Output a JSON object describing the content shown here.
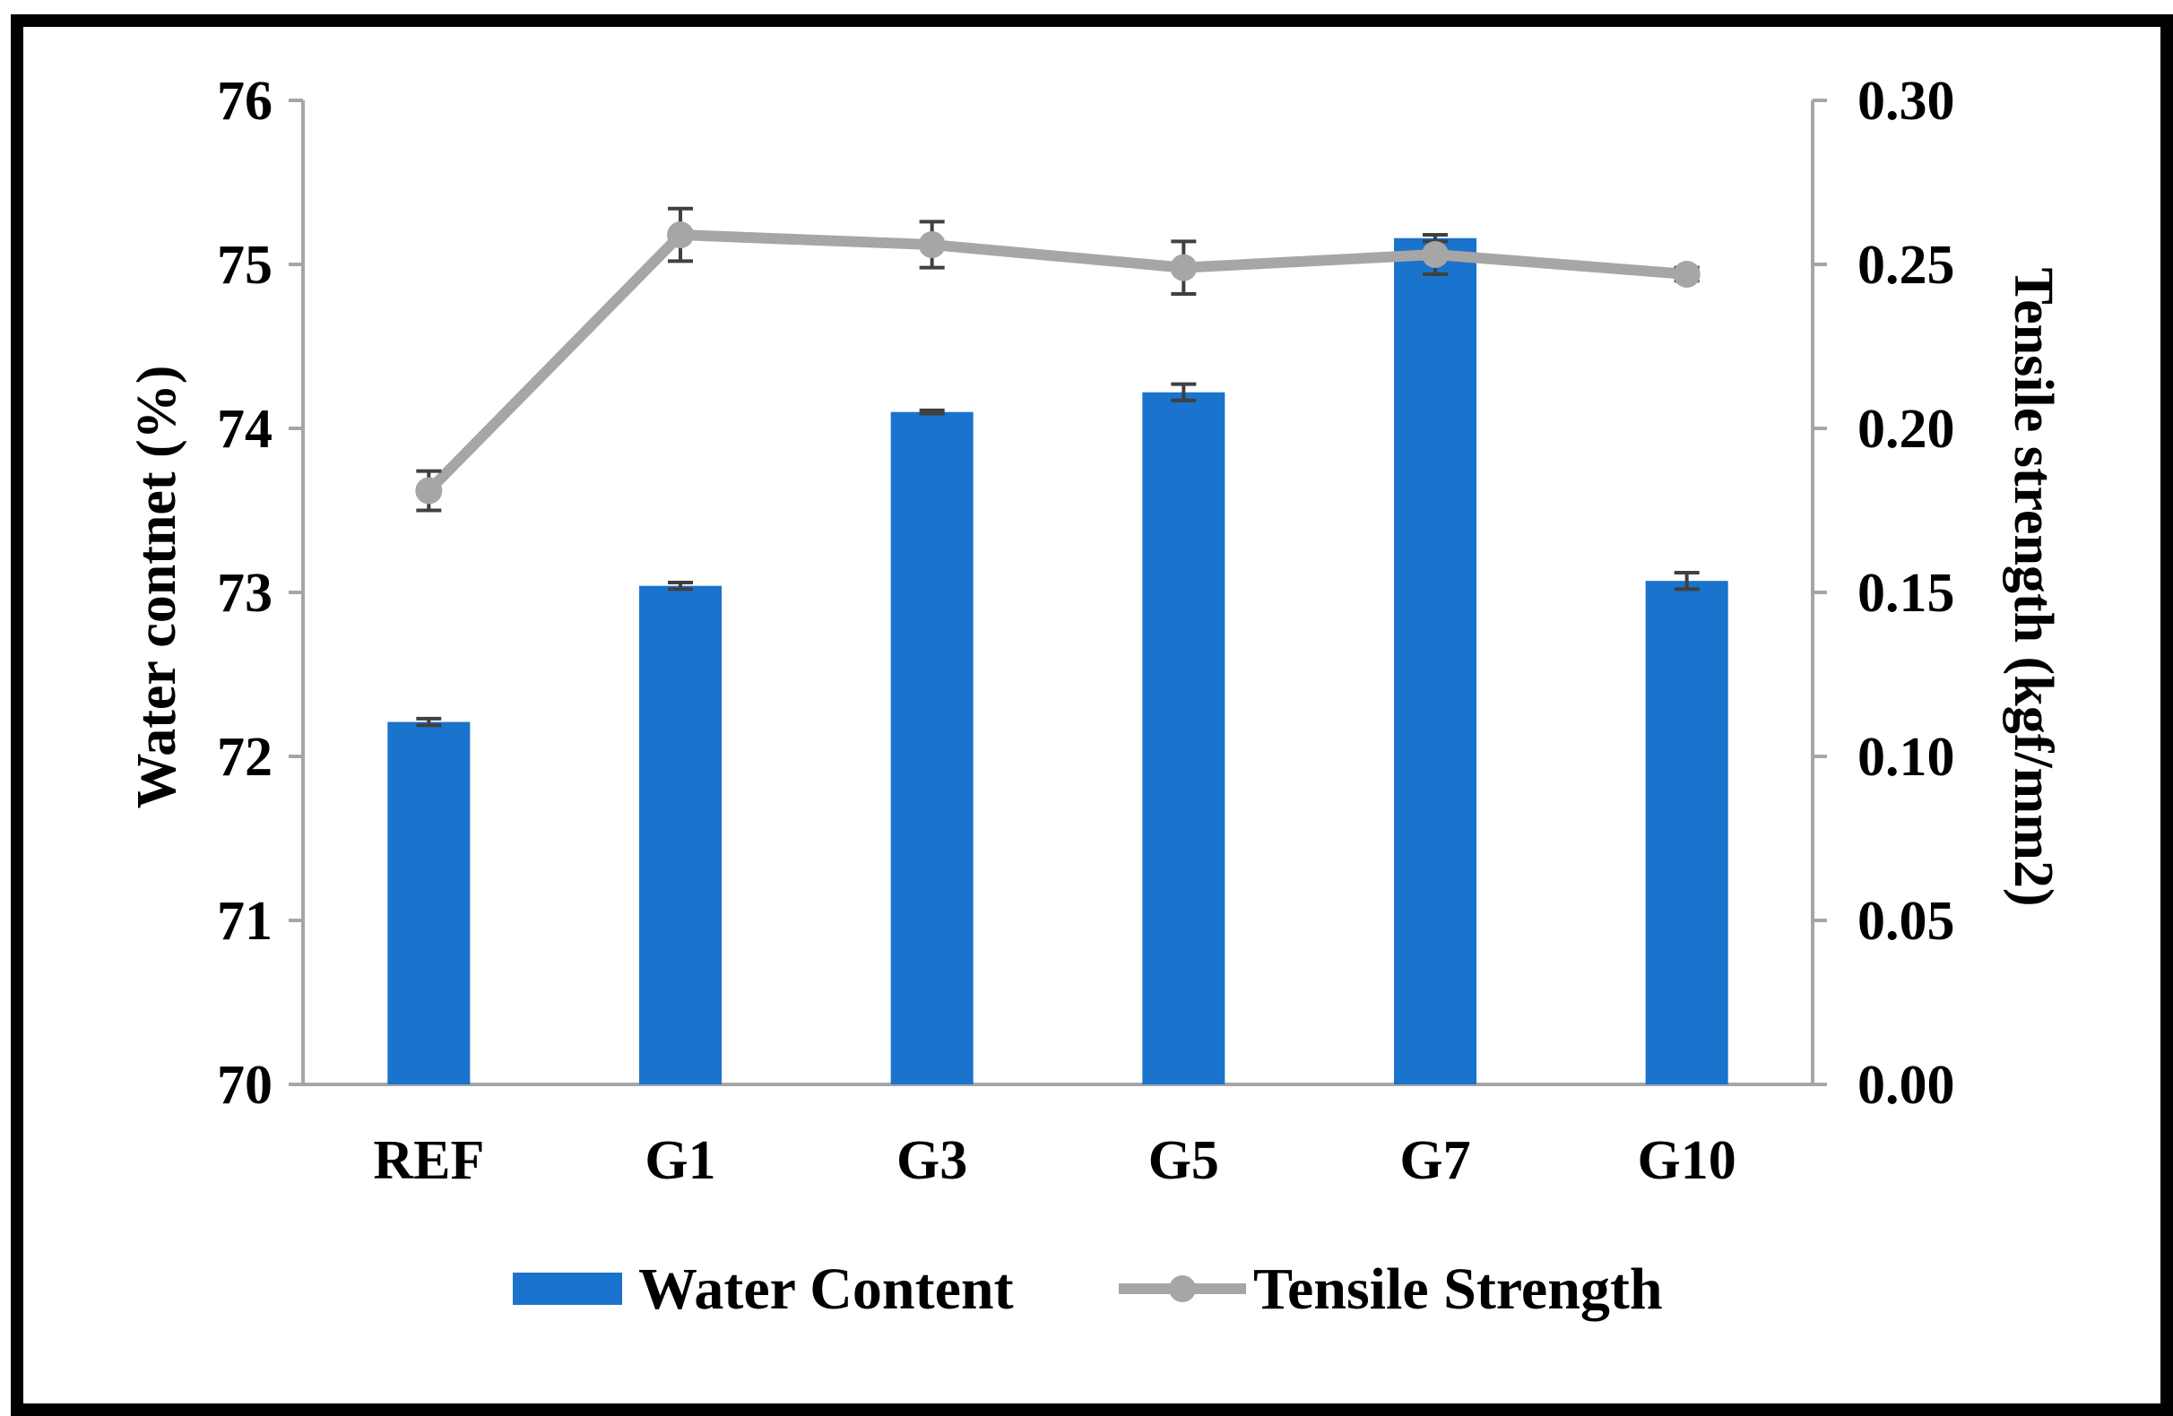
{
  "chart_data": {
    "type": "bar",
    "categories": [
      "REF",
      "G1",
      "G3",
      "G5",
      "G7",
      "G10"
    ],
    "series": [
      {
        "name": "Water Content",
        "type": "bar",
        "axis": "left",
        "values": [
          72.21,
          73.04,
          74.1,
          74.22,
          75.16,
          73.07
        ],
        "errors": [
          0.02,
          0.02,
          0.01,
          0.05,
          0.02,
          0.05
        ],
        "color": "#1a73cc"
      },
      {
        "name": "Tensile Strength",
        "type": "line",
        "axis": "right",
        "values": [
          0.181,
          0.259,
          0.256,
          0.249,
          0.253,
          0.247
        ],
        "errors": [
          0.006,
          0.008,
          0.007,
          0.008,
          0.006,
          0.002
        ],
        "color": "#a6a6a6"
      }
    ],
    "ylabel": "Water contnet (%)",
    "y2label": "Tensile strength (kgf/mm2)",
    "ylim": [
      70,
      76
    ],
    "y2lim": [
      0,
      0.3
    ],
    "yticks": [
      "70",
      "71",
      "72",
      "73",
      "74",
      "75",
      "76"
    ],
    "y2ticks": [
      "0.00",
      "0.05",
      "0.10",
      "0.15",
      "0.20",
      "0.25",
      "0.30"
    ],
    "legend": [
      "Water Content",
      "Tensile Strength"
    ],
    "legend_position": "bottom"
  }
}
